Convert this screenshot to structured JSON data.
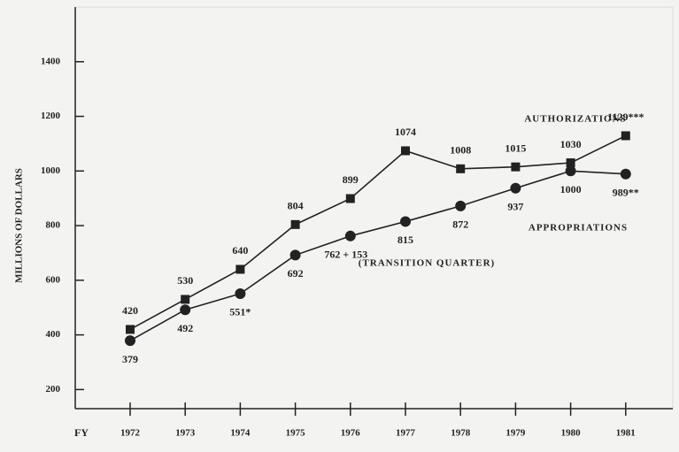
{
  "chart_data": {
    "type": "line",
    "ylabel": "MILLIONS OF DOLLARS",
    "xlabel": "FY",
    "categories": [
      "1972",
      "1973",
      "1974",
      "1975",
      "1976",
      "1977",
      "1978",
      "1979",
      "1980",
      "1981"
    ],
    "series": [
      {
        "name": "AUTHORIZATIONS",
        "color": "#222222",
        "marker": "square",
        "values": [
          420,
          530,
          640,
          804,
          899,
          1074,
          1008,
          1015,
          1030,
          1129
        ],
        "value_labels": [
          "420",
          "530",
          "640",
          "804",
          "899",
          "1074",
          "1008",
          "1015",
          "1030",
          "1129***"
        ]
      },
      {
        "name": "APPROPRIATIONS",
        "color": "#222222",
        "marker": "circle",
        "values": [
          379,
          492,
          551,
          692,
          762,
          815,
          872,
          937,
          1000,
          989
        ],
        "value_labels": [
          "379",
          "492",
          "551*",
          "692",
          "762 + 153",
          "815",
          "872",
          "937",
          "1000",
          "989**"
        ]
      }
    ],
    "annotations": [
      "(TRANSITION QUARTER)"
    ],
    "ylim": [
      130,
      1600
    ],
    "yticks": [
      200,
      400,
      600,
      800,
      1000,
      1200,
      1400
    ]
  }
}
